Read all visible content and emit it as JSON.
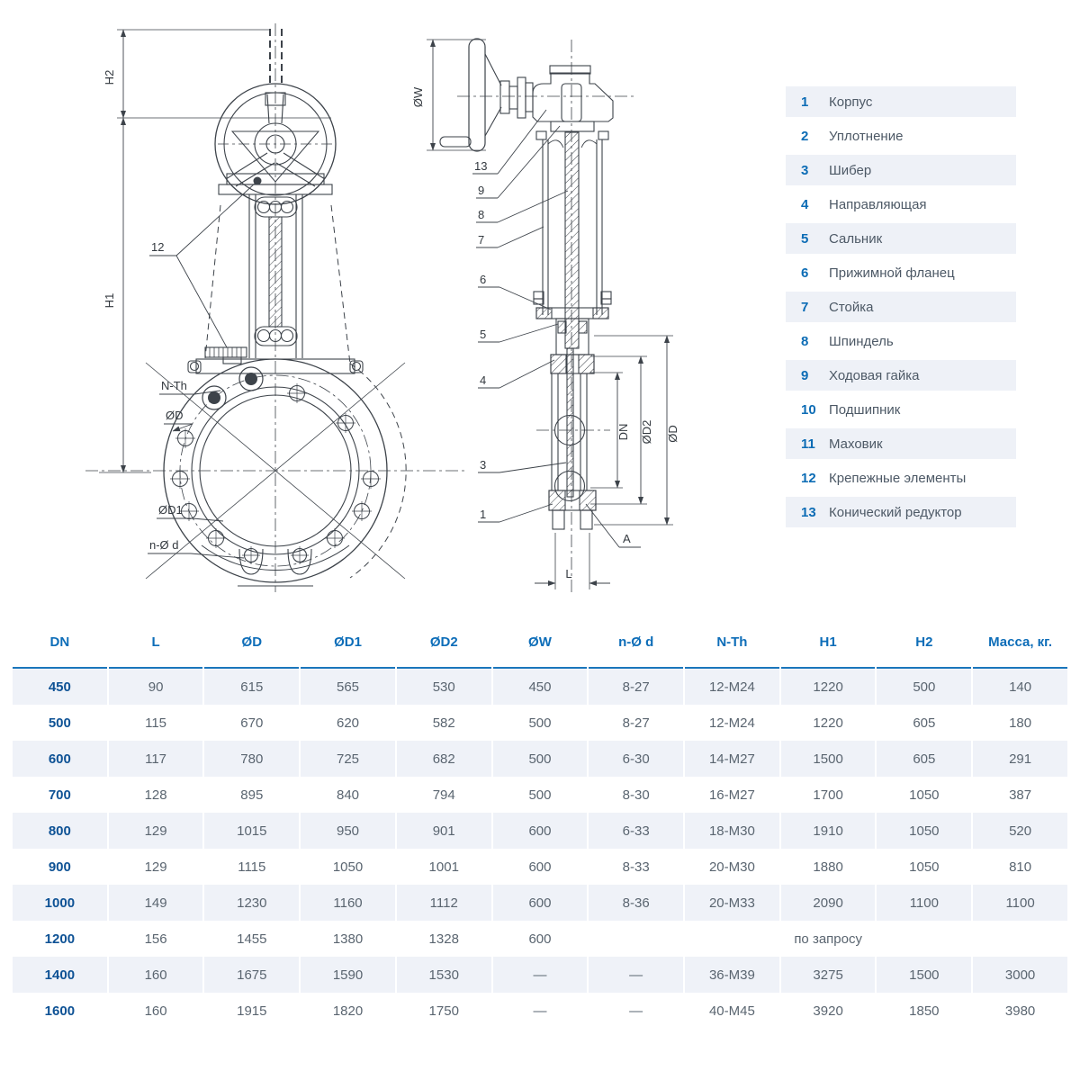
{
  "drawing": {
    "front_view": {
      "dim_h2": "H2",
      "dim_h1": "H1",
      "callout_12": "12",
      "callout_nth": "N-Th",
      "callout_d": "ØD",
      "callout_d1": "ØD1",
      "callout_nd": "n-Ø d"
    },
    "side_view": {
      "dim_w": "ØW",
      "callout_13": "13",
      "callout_9": "9",
      "callout_8": "8",
      "callout_7": "7",
      "callout_6": "6",
      "callout_5": "5",
      "callout_4": "4",
      "callout_3": "3",
      "callout_1": "1",
      "dim_dn": "DN",
      "dim_d2": "ØD2",
      "dim_d": "ØD",
      "callout_a": "A",
      "dim_l": "L"
    }
  },
  "legend": {
    "items": [
      {
        "num": "1",
        "name": "Корпус"
      },
      {
        "num": "2",
        "name": "Уплотнение"
      },
      {
        "num": "3",
        "name": "Шибер"
      },
      {
        "num": "4",
        "name": "Направляющая"
      },
      {
        "num": "5",
        "name": "Сальник"
      },
      {
        "num": "6",
        "name": "Прижимной фланец"
      },
      {
        "num": "7",
        "name": "Стойка"
      },
      {
        "num": "8",
        "name": "Шпиндель"
      },
      {
        "num": "9",
        "name": "Ходовая гайка"
      },
      {
        "num": "10",
        "name": "Подшипник"
      },
      {
        "num": "11",
        "name": "Маховик"
      },
      {
        "num": "12",
        "name": "Крепежные элементы"
      },
      {
        "num": "13",
        "name": "Конический редуктор"
      }
    ]
  },
  "table": {
    "headers": [
      "DN",
      "L",
      "ØD",
      "ØD1",
      "ØD2",
      "ØW",
      "n-Ø d",
      "N-Th",
      "H1",
      "H2",
      "Масса, кг."
    ],
    "rows": [
      {
        "dn": "450",
        "values": [
          "90",
          "615",
          "565",
          "530",
          "450",
          "8-27",
          "12-M24",
          "1220",
          "500",
          "140"
        ]
      },
      {
        "dn": "500",
        "values": [
          "115",
          "670",
          "620",
          "582",
          "500",
          "8-27",
          "12-M24",
          "1220",
          "605",
          "180"
        ]
      },
      {
        "dn": "600",
        "values": [
          "117",
          "780",
          "725",
          "682",
          "500",
          "6-30",
          "14-M27",
          "1500",
          "605",
          "291"
        ]
      },
      {
        "dn": "700",
        "values": [
          "128",
          "895",
          "840",
          "794",
          "500",
          "8-30",
          "16-M27",
          "1700",
          "1050",
          "387"
        ]
      },
      {
        "dn": "800",
        "values": [
          "129",
          "1015",
          "950",
          "901",
          "600",
          "6-33",
          "18-M30",
          "1910",
          "1050",
          "520"
        ]
      },
      {
        "dn": "900",
        "values": [
          "129",
          "1115",
          "1050",
          "1001",
          "600",
          "8-33",
          "20-M30",
          "1880",
          "1050",
          "810"
        ]
      },
      {
        "dn": "1000",
        "values": [
          "149",
          "1230",
          "1160",
          "1112",
          "600",
          "8-36",
          "20-M33",
          "2090",
          "1100",
          "1100"
        ]
      },
      {
        "dn": "1200",
        "values": [
          "156",
          "1455",
          "1380",
          "1328",
          "600"
        ],
        "span_note": "по запросу"
      },
      {
        "dn": "1400",
        "values": [
          "160",
          "1675",
          "1590",
          "1530",
          "—",
          "—",
          "36-M39",
          "3275",
          "1500",
          "3000"
        ]
      },
      {
        "dn": "1600",
        "values": [
          "160",
          "1915",
          "1820",
          "1750",
          "—",
          "—",
          "40-M45",
          "3920",
          "1850",
          "3980"
        ]
      }
    ]
  }
}
